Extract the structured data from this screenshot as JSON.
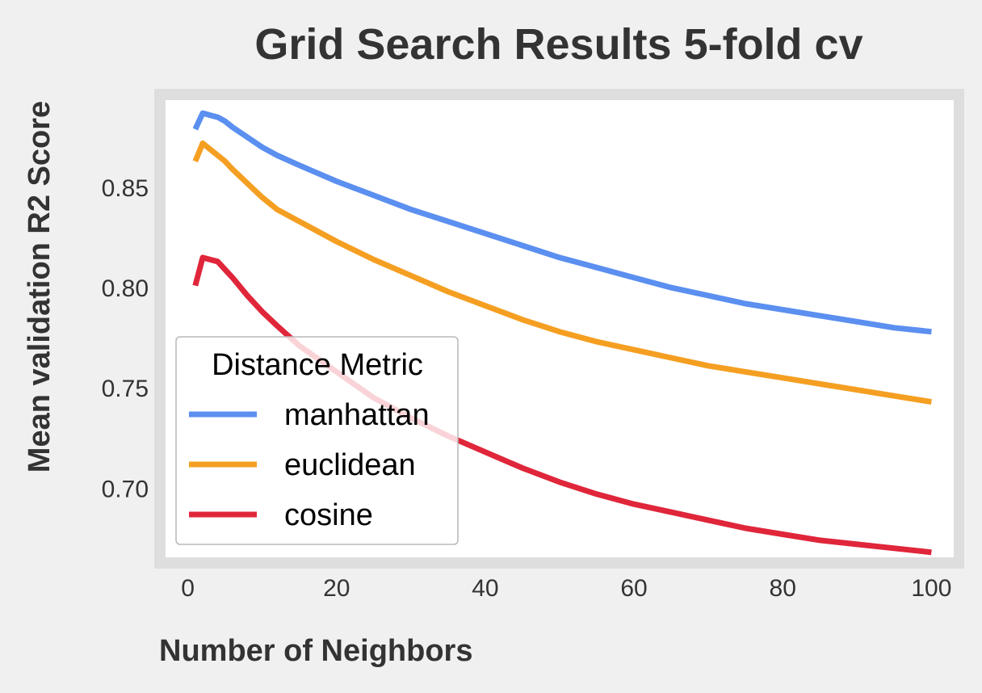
{
  "chart_data": {
    "type": "line",
    "title": "Grid Search Results 5-fold cv",
    "xlabel": "Number of Neighbors",
    "ylabel": "Mean validation R2 Score",
    "xlim": [
      -3,
      103
    ],
    "ylim": [
      0.6655,
      0.8935
    ],
    "x_ticks": [
      0,
      20,
      40,
      60,
      80,
      100
    ],
    "y_ticks": [
      0.7,
      0.75,
      0.8,
      0.85
    ],
    "x_tick_labels": [
      "0",
      "20",
      "40",
      "60",
      "80",
      "100"
    ],
    "y_tick_labels": [
      "0.70",
      "0.75",
      "0.80",
      "0.85"
    ],
    "grid": false,
    "legend": {
      "title": "Distance Metric",
      "placement": "lower-left"
    },
    "x": [
      1,
      2,
      3,
      4,
      5,
      6,
      8,
      10,
      12,
      15,
      20,
      25,
      30,
      35,
      40,
      45,
      50,
      55,
      60,
      65,
      70,
      75,
      80,
      85,
      90,
      95,
      100
    ],
    "series": [
      {
        "name": "manhattan",
        "color": "#5b8ff0",
        "values": [
          0.879,
          0.887,
          0.886,
          0.885,
          0.883,
          0.88,
          0.875,
          0.87,
          0.866,
          0.861,
          0.853,
          0.846,
          0.839,
          0.833,
          0.827,
          0.821,
          0.815,
          0.81,
          0.805,
          0.8,
          0.796,
          0.792,
          0.789,
          0.786,
          0.783,
          0.78,
          0.778
        ]
      },
      {
        "name": "euclidean",
        "color": "#f59f22",
        "values": [
          0.863,
          0.872,
          0.869,
          0.866,
          0.863,
          0.859,
          0.852,
          0.845,
          0.839,
          0.833,
          0.823,
          0.814,
          0.806,
          0.798,
          0.791,
          0.784,
          0.778,
          0.773,
          0.769,
          0.765,
          0.761,
          0.758,
          0.755,
          0.752,
          0.749,
          0.746,
          0.743
        ]
      },
      {
        "name": "cosine",
        "color": "#e0263a",
        "values": [
          0.801,
          0.815,
          0.814,
          0.813,
          0.809,
          0.805,
          0.796,
          0.788,
          0.781,
          0.771,
          0.758,
          0.745,
          0.735,
          0.726,
          0.718,
          0.71,
          0.703,
          0.697,
          0.692,
          0.688,
          0.684,
          0.68,
          0.677,
          0.674,
          0.672,
          0.67,
          0.668
        ]
      }
    ]
  }
}
